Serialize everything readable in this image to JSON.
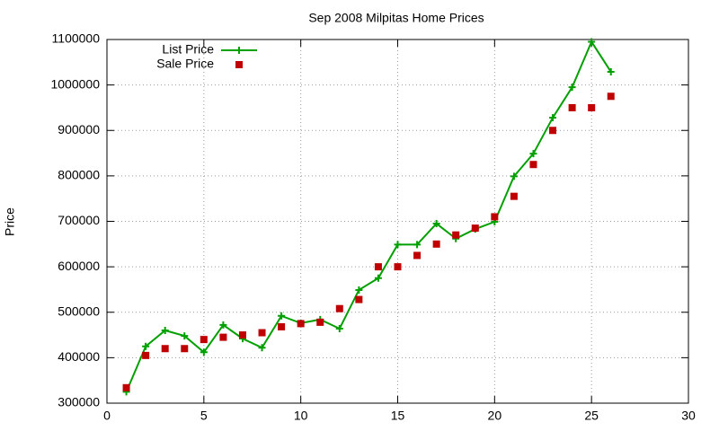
{
  "chart_data": {
    "type": "line",
    "title": "Sep 2008 Milpitas Home Prices",
    "ylabel": "Price",
    "x": [
      1,
      2,
      3,
      4,
      5,
      6,
      7,
      8,
      9,
      10,
      11,
      12,
      13,
      14,
      15,
      16,
      17,
      18,
      19,
      20,
      21,
      22,
      23,
      24,
      25,
      26
    ],
    "series": [
      {
        "name": "List Price",
        "color": "#00a000",
        "style": "linespoints",
        "values": [
          325000,
          425000,
          460000,
          448000,
          412000,
          472000,
          442000,
          422000,
          492000,
          476000,
          484000,
          464000,
          549000,
          575000,
          649000,
          649000,
          695000,
          662000,
          683000,
          699000,
          799000,
          849000,
          928000,
          995000,
          1095000,
          1029000
        ]
      },
      {
        "name": "Sale Price",
        "color": "#c00000",
        "style": "points",
        "values": [
          334000,
          405000,
          420000,
          420000,
          440000,
          445000,
          450000,
          455000,
          468000,
          475000,
          478000,
          508000,
          528000,
          600000,
          600000,
          625000,
          650000,
          670000,
          685000,
          710000,
          755000,
          825000,
          900000,
          950000,
          950000,
          975000
        ]
      }
    ],
    "xlim": [
      0,
      30
    ],
    "xticks": [
      0,
      5,
      10,
      15,
      20,
      25,
      30
    ],
    "ylim": [
      300000,
      1100000
    ],
    "yticks": [
      300000,
      400000,
      500000,
      600000,
      700000,
      800000,
      900000,
      1000000,
      1100000
    ],
    "grid": true,
    "legend": "top-left"
  }
}
